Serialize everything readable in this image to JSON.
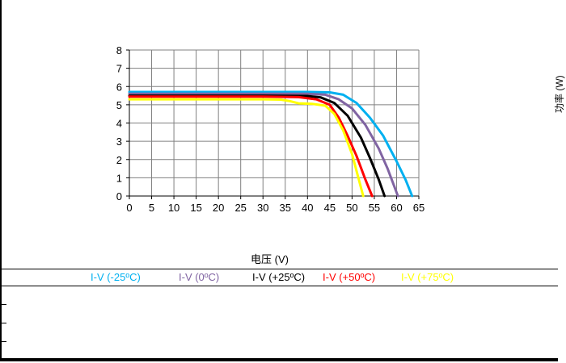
{
  "chart_data": {
    "type": "line",
    "xlabel": "电压 (V)",
    "ylabel": "",
    "secondary_ylabel": "功率 (W)",
    "xlim": [
      0,
      65
    ],
    "ylim": [
      0,
      8
    ],
    "xticks": [
      0,
      5,
      10,
      15,
      20,
      25,
      30,
      35,
      40,
      45,
      50,
      55,
      60,
      65
    ],
    "yticks": [
      0,
      1,
      2,
      3,
      4,
      5,
      6,
      7,
      8
    ],
    "grid": true,
    "legend_position": "bottom",
    "series": [
      {
        "name": "I-V (-25ºC)",
        "color": "#00B0F0",
        "x": [
          0,
          10,
          20,
          30,
          40,
          45,
          48,
          51,
          54,
          57,
          60,
          62,
          63.5
        ],
        "y": [
          5.7,
          5.7,
          5.7,
          5.7,
          5.7,
          5.68,
          5.55,
          5.1,
          4.3,
          3.3,
          1.9,
          0.9,
          0
        ]
      },
      {
        "name": "I-V (0ºC)",
        "color": "#8064A2",
        "x": [
          0,
          10,
          20,
          30,
          40,
          44,
          47,
          50,
          53,
          56,
          58,
          60.3
        ],
        "y": [
          5.6,
          5.6,
          5.6,
          5.6,
          5.6,
          5.55,
          5.3,
          4.8,
          3.9,
          2.6,
          1.5,
          0
        ]
      },
      {
        "name": "I-V (+25ºC)",
        "color": "#000000",
        "x": [
          0,
          10,
          20,
          30,
          40,
          43,
          46,
          49,
          52,
          54,
          56,
          57.3
        ],
        "y": [
          5.5,
          5.5,
          5.5,
          5.5,
          5.48,
          5.4,
          5.1,
          4.4,
          3.2,
          2.1,
          0.9,
          0
        ]
      },
      {
        "name": "I-V (+50ºC)",
        "color": "#FF0000",
        "x": [
          0,
          10,
          20,
          30,
          38,
          42,
          45,
          47,
          49,
          51,
          53,
          54.5
        ],
        "y": [
          5.45,
          5.45,
          5.45,
          5.45,
          5.42,
          5.3,
          5.0,
          4.3,
          3.3,
          2.2,
          0.9,
          0
        ]
      },
      {
        "name": "I-V (+75ºC)",
        "color": "#FFFF00",
        "x": [
          0,
          10,
          20,
          30,
          34,
          36,
          38,
          41,
          44,
          46,
          48,
          50,
          52.5
        ],
        "y": [
          5.3,
          5.3,
          5.3,
          5.3,
          5.28,
          5.2,
          5.08,
          5.05,
          4.95,
          4.5,
          3.6,
          2.3,
          0
        ]
      }
    ]
  }
}
